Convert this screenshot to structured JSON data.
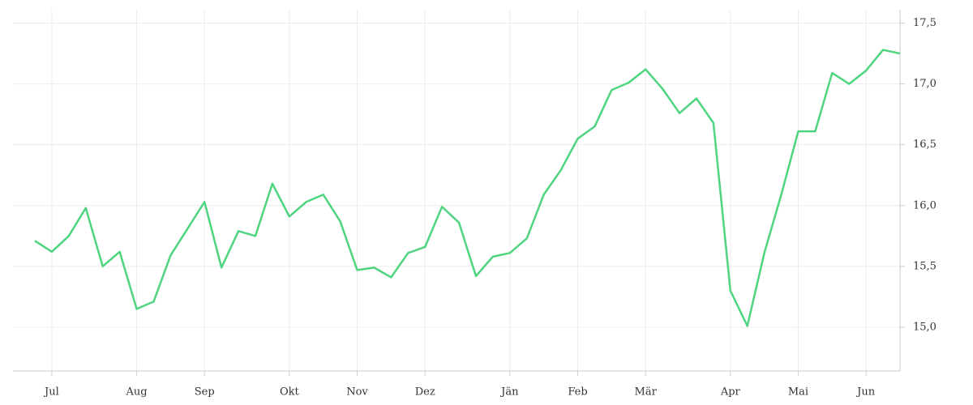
{
  "chart_data": {
    "type": "line",
    "categories": [
      null,
      "Jul",
      null,
      null,
      null,
      null,
      "Aug",
      null,
      null,
      null,
      "Sep",
      null,
      null,
      null,
      null,
      "Okt",
      null,
      null,
      null,
      "Nov",
      null,
      null,
      null,
      "Dez",
      null,
      null,
      null,
      null,
      "Jän",
      null,
      null,
      null,
      "Feb",
      null,
      null,
      null,
      "Mär",
      null,
      null,
      null,
      null,
      "Apr",
      null,
      null,
      null,
      "Mai",
      null,
      null,
      null,
      "Jun",
      null,
      null
    ],
    "series": [
      {
        "color": "#4fd47f",
        "values": [
          15.71,
          15.62,
          15.75,
          15.98,
          15.5,
          15.62,
          15.15,
          15.21,
          15.59,
          15.81,
          16.03,
          15.49,
          15.79,
          15.75,
          16.18,
          15.91,
          16.03,
          16.09,
          15.87,
          15.47,
          15.49,
          15.41,
          15.61,
          15.66,
          15.99,
          15.86,
          15.42,
          15.58,
          15.61,
          15.73,
          16.09,
          16.29,
          16.55,
          16.65,
          16.95,
          17.01,
          17.12,
          16.96,
          16.76,
          16.88,
          16.68,
          15.3,
          15.01,
          15.61,
          16.09,
          16.61,
          16.61,
          17.09,
          17.0,
          17.11,
          17.28,
          17.25
        ]
      }
    ],
    "ylim": [
      14.64,
      17.61
    ],
    "yticks": [
      {
        "value": 15,
        "label": "15,0"
      },
      {
        "value": 15.5,
        "label": "15,5"
      },
      {
        "value": 16,
        "label": "16,0"
      },
      {
        "value": 16.5,
        "label": "16,5"
      },
      {
        "value": 17,
        "label": "17,0"
      },
      {
        "value": 17.5,
        "label": "17,5"
      }
    ],
    "grid": true
  }
}
